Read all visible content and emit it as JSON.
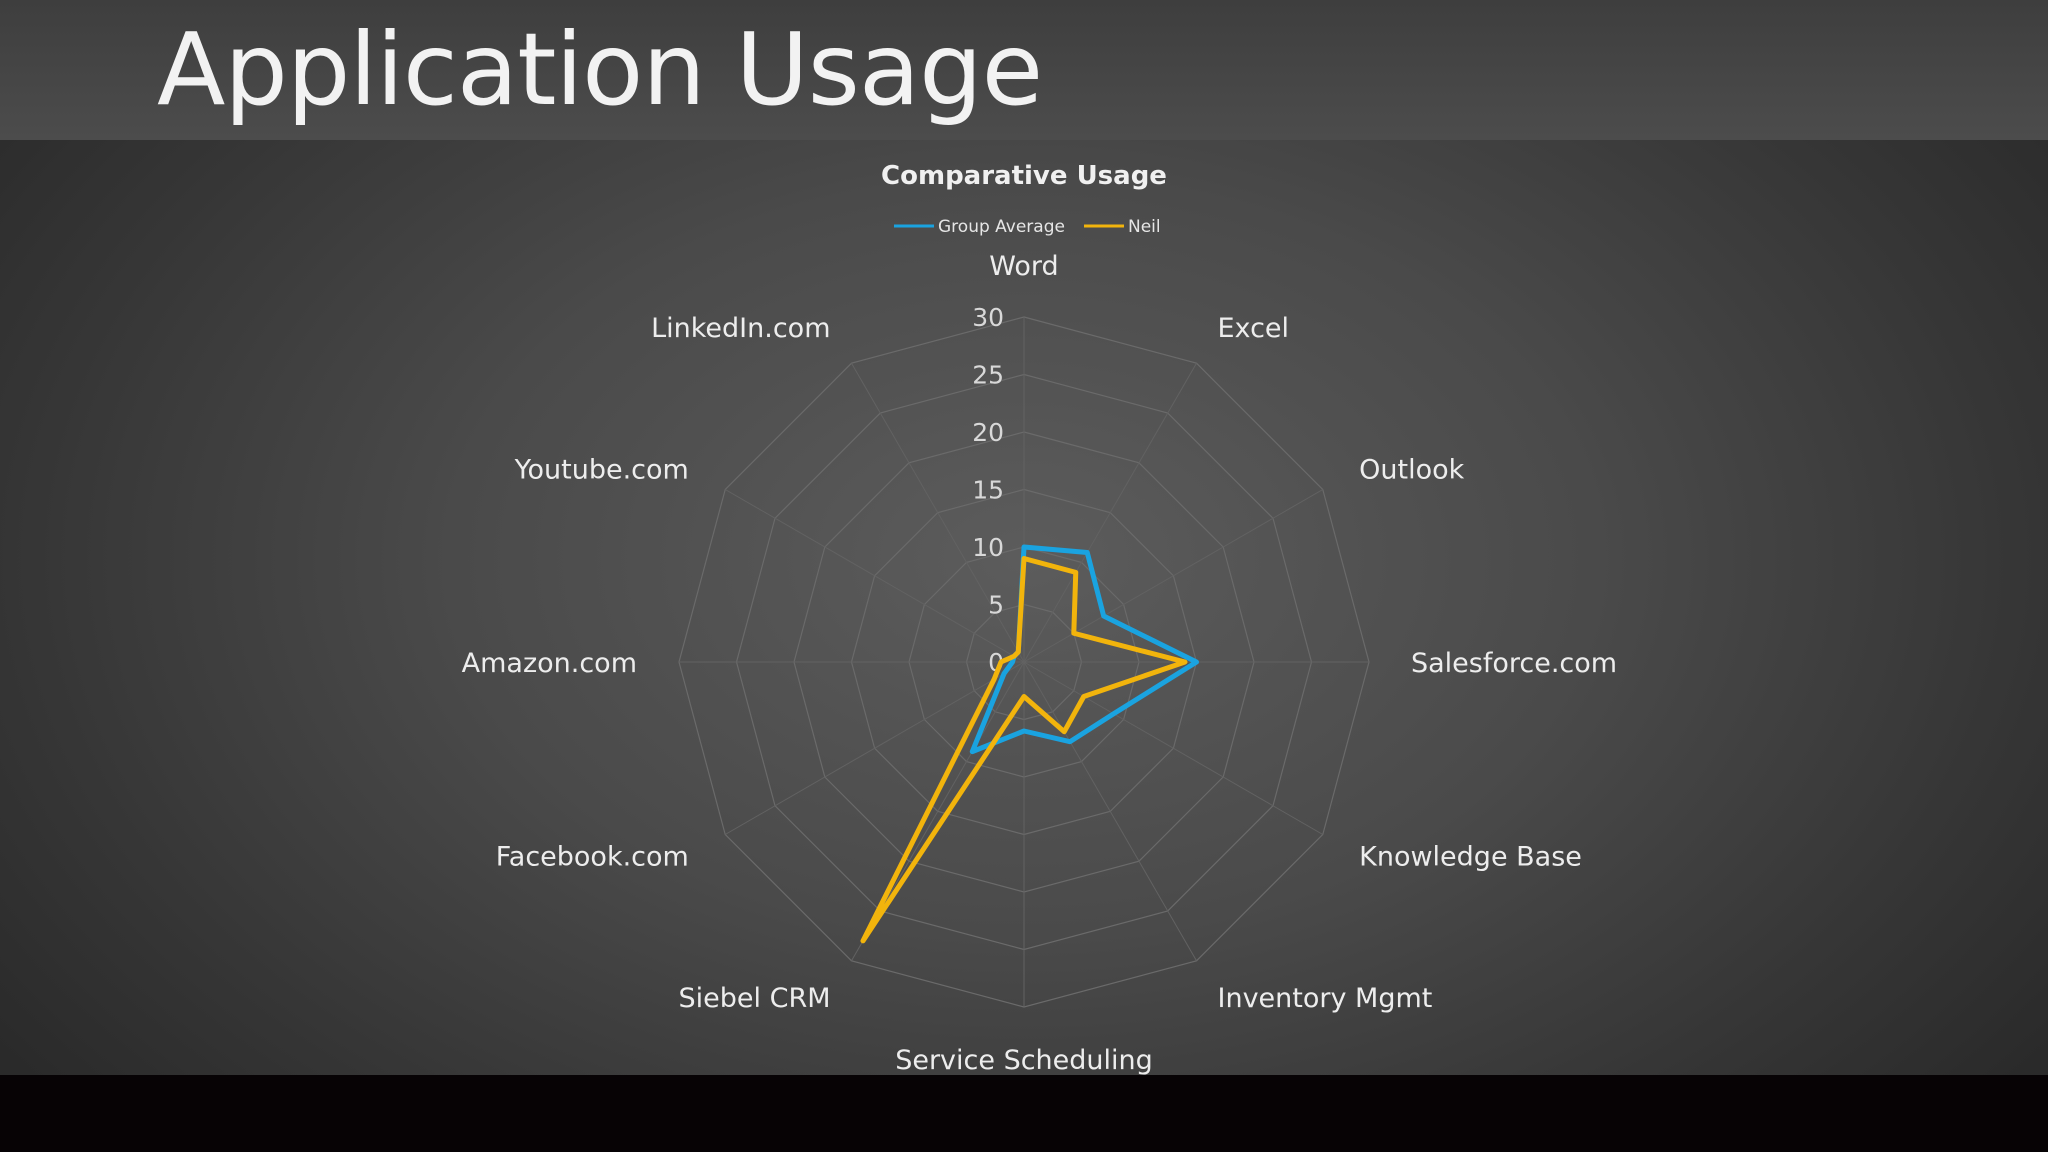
{
  "slide": {
    "title": "Application Usage"
  },
  "chart_data": {
    "type": "radar",
    "title": "Comparative Usage",
    "legend_position": "top",
    "categories": [
      "Word",
      "Excel",
      "Outlook",
      "Salesforce.com",
      "Knowledge Base",
      "Inventory Mgmt",
      "Service Scheduling",
      "Siebel CRM",
      "Facebook.com",
      "Amazon.com",
      "Youtube.com",
      "LinkedIn.com"
    ],
    "rlim": [
      0,
      30
    ],
    "ticks": [
      "0",
      "5",
      "10",
      "15",
      "20",
      "25",
      "30"
    ],
    "series": [
      {
        "name": "Group Average",
        "color": "#1aa3e0",
        "values": [
          10,
          11,
          8,
          15,
          9,
          8,
          6,
          9,
          2,
          1,
          1,
          1
        ]
      },
      {
        "name": "Neil",
        "color": "#f2b40c",
        "values": [
          9,
          9,
          5,
          14,
          6,
          7,
          3,
          28,
          3,
          2,
          1,
          1
        ]
      }
    ],
    "grid": true
  }
}
